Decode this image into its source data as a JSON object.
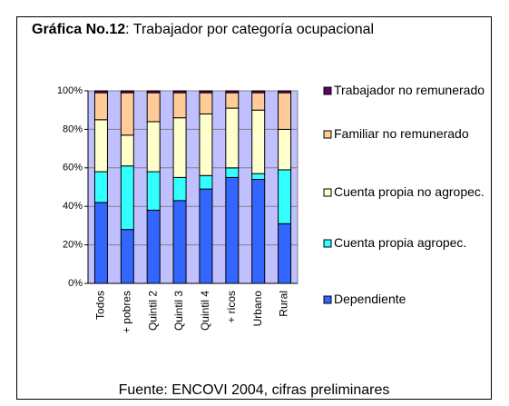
{
  "chart_data": {
    "type": "stacked_bar",
    "title": {
      "bold": "Gráfica No.12",
      "rest": ": Trabajador por categoría ocupacional"
    },
    "source": "Fuente: ENCOVI 2004, cifras preliminares",
    "categories": [
      "Todos",
      "+ pobres",
      "Quintil 2",
      "Quintil 3",
      "Quintil 4",
      "+ ricos",
      "Urbano",
      "Rural"
    ],
    "series": [
      {
        "name": "Dependiente",
        "color": "#3366ff",
        "values": [
          42,
          28,
          38,
          43,
          49,
          55,
          54,
          31
        ]
      },
      {
        "name": "Cuenta propia agropec.",
        "color": "#33ffff",
        "values": [
          16,
          33,
          20,
          12,
          7,
          5,
          3,
          28
        ]
      },
      {
        "name": "Cuenta propia no agropec.",
        "color": "#ffffcc",
        "values": [
          27,
          16,
          26,
          31,
          32,
          31,
          33,
          21
        ]
      },
      {
        "name": "Familiar no remunerado",
        "color": "#ffcc99",
        "values": [
          14,
          22,
          15,
          13,
          11,
          8,
          9,
          19
        ]
      },
      {
        "name": "Trabajador no remunerado",
        "color": "#660066",
        "values": [
          1,
          1,
          1,
          1,
          1,
          1,
          1,
          1
        ]
      }
    ],
    "ylim": [
      0,
      100
    ],
    "yticks": [
      {
        "value": 0,
        "label": "0%"
      },
      {
        "value": 20,
        "label": "20%"
      },
      {
        "value": 40,
        "label": "40%"
      },
      {
        "value": 60,
        "label": "60%"
      },
      {
        "value": 80,
        "label": "80%"
      },
      {
        "value": 100,
        "label": "100%"
      }
    ],
    "grid": true,
    "legend": "right",
    "plot_background": "#c0c0ff"
  }
}
